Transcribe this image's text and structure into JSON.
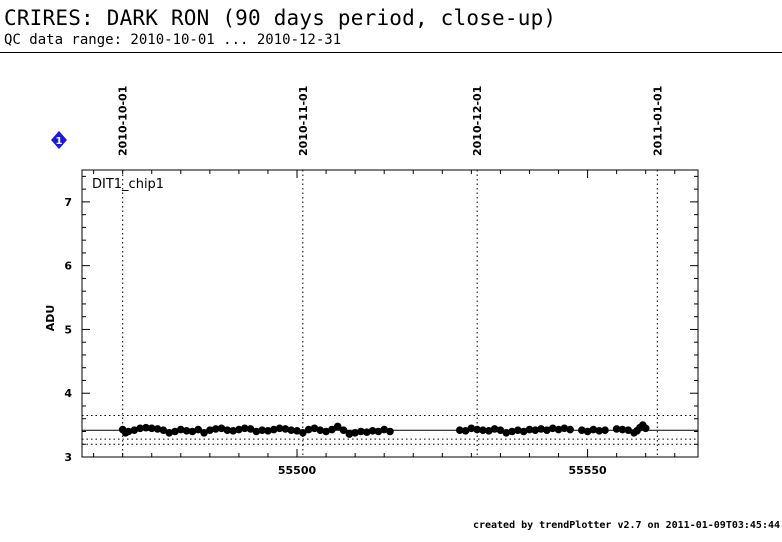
{
  "header": {
    "title": "CRIRES: DARK RON (90 days period, close-up)",
    "subtitle": "QC data range: 2010-10-01 ... 2010-12-31"
  },
  "footer": {
    "text": "created by trendPlotter v2.7 on 2011-01-09T03:45:44"
  },
  "colors": {
    "marker_badge": "#1a1ad6",
    "points": "#000000"
  },
  "chart_data": {
    "type": "scatter",
    "panel_label": "DIT1_chip1",
    "marker_badge": "1",
    "ylabel": "ADU",
    "xlabel": "",
    "xlim": [
      55463,
      55569
    ],
    "ylim": [
      3,
      7.5
    ],
    "yticks": [
      3,
      4,
      5,
      6,
      7
    ],
    "xticks": [
      55500,
      55550
    ],
    "date_lines": [
      {
        "label": "2010-10-01",
        "x": 55470
      },
      {
        "label": "2010-11-01",
        "x": 55501
      },
      {
        "label": "2010-12-01",
        "x": 55531
      },
      {
        "label": "2011-01-01",
        "x": 55562
      }
    ],
    "reference_lines": {
      "median": 3.42,
      "upper": 3.65,
      "lower": 3.28,
      "lower2": 3.2
    },
    "points": [
      {
        "x": 55470.0,
        "y": 3.43
      },
      {
        "x": 55470.5,
        "y": 3.38
      },
      {
        "x": 55471.0,
        "y": 3.4
      },
      {
        "x": 55472.0,
        "y": 3.42
      },
      {
        "x": 55473.0,
        "y": 3.45
      },
      {
        "x": 55474.0,
        "y": 3.46
      },
      {
        "x": 55475.0,
        "y": 3.45
      },
      {
        "x": 55476.0,
        "y": 3.44
      },
      {
        "x": 55477.0,
        "y": 3.42
      },
      {
        "x": 55478.0,
        "y": 3.38
      },
      {
        "x": 55479.0,
        "y": 3.4
      },
      {
        "x": 55480.0,
        "y": 3.43
      },
      {
        "x": 55481.0,
        "y": 3.41
      },
      {
        "x": 55482.0,
        "y": 3.4
      },
      {
        "x": 55483.0,
        "y": 3.43
      },
      {
        "x": 55484.0,
        "y": 3.38
      },
      {
        "x": 55485.0,
        "y": 3.42
      },
      {
        "x": 55486.0,
        "y": 3.44
      },
      {
        "x": 55487.0,
        "y": 3.45
      },
      {
        "x": 55488.0,
        "y": 3.42
      },
      {
        "x": 55489.0,
        "y": 3.41
      },
      {
        "x": 55490.0,
        "y": 3.43
      },
      {
        "x": 55491.0,
        "y": 3.45
      },
      {
        "x": 55492.0,
        "y": 3.44
      },
      {
        "x": 55493.0,
        "y": 3.4
      },
      {
        "x": 55494.0,
        "y": 3.42
      },
      {
        "x": 55495.0,
        "y": 3.41
      },
      {
        "x": 55496.0,
        "y": 3.43
      },
      {
        "x": 55497.0,
        "y": 3.45
      },
      {
        "x": 55498.0,
        "y": 3.44
      },
      {
        "x": 55499.0,
        "y": 3.42
      },
      {
        "x": 55500.0,
        "y": 3.41
      },
      {
        "x": 55501.0,
        "y": 3.38
      },
      {
        "x": 55502.0,
        "y": 3.43
      },
      {
        "x": 55503.0,
        "y": 3.45
      },
      {
        "x": 55504.0,
        "y": 3.42
      },
      {
        "x": 55505.0,
        "y": 3.4
      },
      {
        "x": 55506.0,
        "y": 3.43
      },
      {
        "x": 55507.0,
        "y": 3.48
      },
      {
        "x": 55508.0,
        "y": 3.42
      },
      {
        "x": 55509.0,
        "y": 3.36
      },
      {
        "x": 55510.0,
        "y": 3.38
      },
      {
        "x": 55511.0,
        "y": 3.4
      },
      {
        "x": 55512.0,
        "y": 3.39
      },
      {
        "x": 55513.0,
        "y": 3.41
      },
      {
        "x": 55514.0,
        "y": 3.4
      },
      {
        "x": 55515.0,
        "y": 3.43
      },
      {
        "x": 55516.0,
        "y": 3.4
      },
      {
        "x": 55528.0,
        "y": 3.42
      },
      {
        "x": 55529.0,
        "y": 3.41
      },
      {
        "x": 55530.0,
        "y": 3.45
      },
      {
        "x": 55531.0,
        "y": 3.43
      },
      {
        "x": 55532.0,
        "y": 3.42
      },
      {
        "x": 55533.0,
        "y": 3.41
      },
      {
        "x": 55534.0,
        "y": 3.44
      },
      {
        "x": 55535.0,
        "y": 3.42
      },
      {
        "x": 55536.0,
        "y": 3.38
      },
      {
        "x": 55537.0,
        "y": 3.4
      },
      {
        "x": 55538.0,
        "y": 3.42
      },
      {
        "x": 55539.0,
        "y": 3.4
      },
      {
        "x": 55540.0,
        "y": 3.43
      },
      {
        "x": 55541.0,
        "y": 3.42
      },
      {
        "x": 55542.0,
        "y": 3.44
      },
      {
        "x": 55543.0,
        "y": 3.42
      },
      {
        "x": 55544.0,
        "y": 3.45
      },
      {
        "x": 55545.0,
        "y": 3.43
      },
      {
        "x": 55546.0,
        "y": 3.45
      },
      {
        "x": 55547.0,
        "y": 3.43
      },
      {
        "x": 55549.0,
        "y": 3.42
      },
      {
        "x": 55550.0,
        "y": 3.4
      },
      {
        "x": 55551.0,
        "y": 3.43
      },
      {
        "x": 55552.0,
        "y": 3.41
      },
      {
        "x": 55553.0,
        "y": 3.42
      },
      {
        "x": 55555.0,
        "y": 3.44
      },
      {
        "x": 55556.0,
        "y": 3.43
      },
      {
        "x": 55557.0,
        "y": 3.42
      },
      {
        "x": 55558.0,
        "y": 3.38
      },
      {
        "x": 55558.5,
        "y": 3.41
      },
      {
        "x": 55559.0,
        "y": 3.46
      },
      {
        "x": 55559.5,
        "y": 3.5
      },
      {
        "x": 55560.0,
        "y": 3.45
      }
    ]
  }
}
